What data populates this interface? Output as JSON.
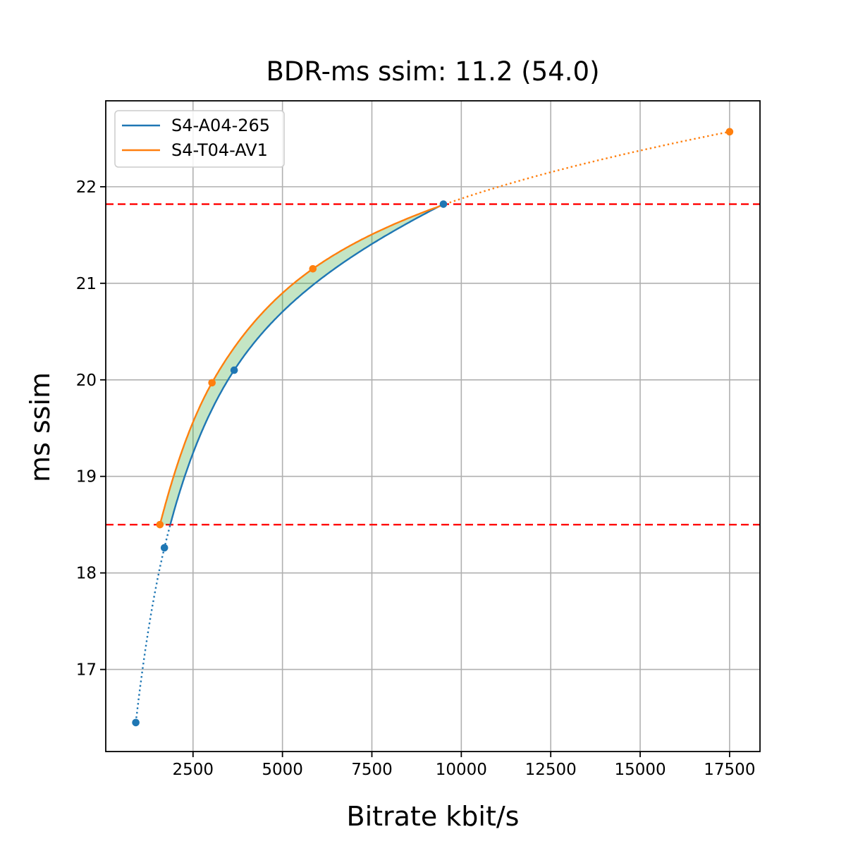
{
  "chart_data": {
    "type": "line",
    "title": "BDR-ms ssim: 11.2 (54.0)",
    "xlabel": "Bitrate kbit/s",
    "ylabel": "ms ssim",
    "xlim": [
      60,
      18350
    ],
    "ylim": [
      16.15,
      22.89
    ],
    "x_ticks": [
      2500,
      5000,
      7500,
      10000,
      12500,
      15000,
      17500
    ],
    "y_ticks": [
      17,
      18,
      19,
      20,
      21,
      22
    ],
    "grid": true,
    "grid_color": "#b0b0b0",
    "legend_position": "upper left",
    "series": [
      {
        "name": "S4-A04-265",
        "color": "#1f77b4",
        "x": [
          900,
          1700,
          3650,
          9500
        ],
        "y": [
          16.45,
          18.26,
          20.1,
          21.82
        ]
      },
      {
        "name": "S4-T04-AV1",
        "color": "#ff7f0e",
        "x": [
          1575,
          3030,
          5850,
          17500
        ],
        "y": [
          18.5,
          19.97,
          21.15,
          22.57
        ]
      }
    ],
    "hlines": {
      "color": "#ff0000",
      "style": "dashed",
      "values": [
        18.5,
        21.82
      ]
    },
    "solid_y_range": [
      18.5,
      21.82
    ],
    "fill_between": {
      "color_rgb": [
        44,
        160,
        44
      ],
      "alpha": 0.28,
      "between": [
        "S4-T04-AV1",
        "S4-A04-265"
      ],
      "y_range": [
        18.5,
        21.82
      ]
    },
    "interpolation": "pchip on log10(bitrate)"
  }
}
